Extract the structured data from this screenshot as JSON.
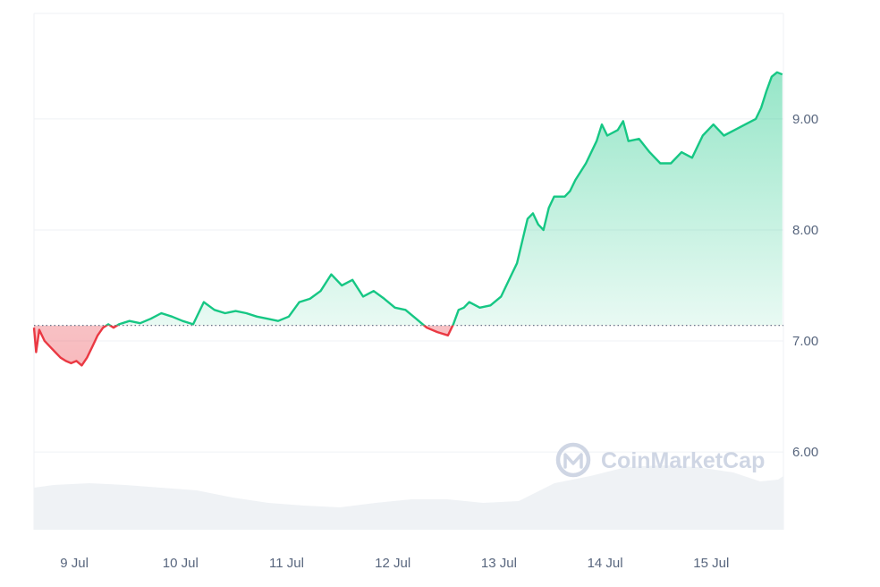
{
  "watermark": "CoinMarketCap",
  "colors": {
    "up": "#16c784",
    "down": "#ea3943",
    "grid": "#eff2f5",
    "baseline": "#58667e",
    "volume": "#eff2f5",
    "label": "#58667e"
  },
  "chart_data": {
    "type": "line",
    "title": "",
    "xlabel": "",
    "ylabel": "",
    "y_axis_position": "right",
    "ylim": [
      5.3,
      9.95
    ],
    "y_ticks": [
      6.0,
      7.0,
      8.0,
      9.0
    ],
    "y_tick_labels": [
      "6.00",
      "7.00",
      "8.00",
      "9.00"
    ],
    "x_ticks": [
      "9 Jul",
      "10 Jul",
      "11 Jul",
      "12 Jul",
      "13 Jul",
      "14 Jul",
      "15 Jul"
    ],
    "x_tick_positions_days": [
      0.38,
      1.38,
      2.38,
      3.38,
      4.38,
      5.38,
      6.38
    ],
    "xlim_days": [
      0,
      7.06
    ],
    "baseline": 7.14,
    "series": [
      {
        "x": [
          0,
          0.02,
          0.05,
          0.1,
          0.15,
          0.2,
          0.25,
          0.3,
          0.35,
          0.4,
          0.45,
          0.5,
          0.55,
          0.6,
          0.65,
          0.7,
          0.75,
          0.8,
          0.9,
          1.0,
          1.1,
          1.2,
          1.3,
          1.4,
          1.5,
          1.6,
          1.7,
          1.8,
          1.9,
          2.0,
          2.1,
          2.2,
          2.3,
          2.4,
          2.5,
          2.6,
          2.7,
          2.8,
          2.9,
          3.0,
          3.1,
          3.2,
          3.3,
          3.4,
          3.5,
          3.6,
          3.7,
          3.8,
          3.9,
          3.95,
          4.0,
          4.05,
          4.1,
          4.2,
          4.3,
          4.4,
          4.5,
          4.55,
          4.6,
          4.65,
          4.7,
          4.75,
          4.8,
          4.85,
          4.9,
          5.0,
          5.05,
          5.1,
          5.2,
          5.3,
          5.35,
          5.4,
          5.5,
          5.55,
          5.6,
          5.7,
          5.8,
          5.9,
          6.0,
          6.1,
          6.2,
          6.3,
          6.4,
          6.5,
          6.6,
          6.7,
          6.8,
          6.85,
          6.9,
          6.95,
          7.0,
          7.05
        ],
        "y": [
          7.12,
          6.9,
          7.1,
          7.0,
          6.95,
          6.9,
          6.85,
          6.82,
          6.8,
          6.82,
          6.78,
          6.85,
          6.95,
          7.05,
          7.12,
          7.15,
          7.12,
          7.15,
          7.18,
          7.16,
          7.2,
          7.25,
          7.22,
          7.18,
          7.15,
          7.35,
          7.28,
          7.25,
          7.27,
          7.25,
          7.22,
          7.2,
          7.18,
          7.22,
          7.35,
          7.38,
          7.45,
          7.6,
          7.5,
          7.55,
          7.4,
          7.45,
          7.38,
          7.3,
          7.28,
          7.2,
          7.12,
          7.08,
          7.05,
          7.15,
          7.28,
          7.3,
          7.35,
          7.3,
          7.32,
          7.4,
          7.6,
          7.7,
          7.9,
          8.1,
          8.15,
          8.05,
          8.0,
          8.2,
          8.3,
          8.3,
          8.35,
          8.45,
          8.6,
          8.8,
          8.95,
          8.85,
          8.9,
          8.98,
          8.8,
          8.82,
          8.7,
          8.6,
          8.6,
          8.7,
          8.65,
          8.85,
          8.95,
          8.85,
          8.9,
          8.95,
          9.0,
          9.1,
          9.25,
          9.38,
          9.42,
          9.4
        ]
      }
    ]
  }
}
